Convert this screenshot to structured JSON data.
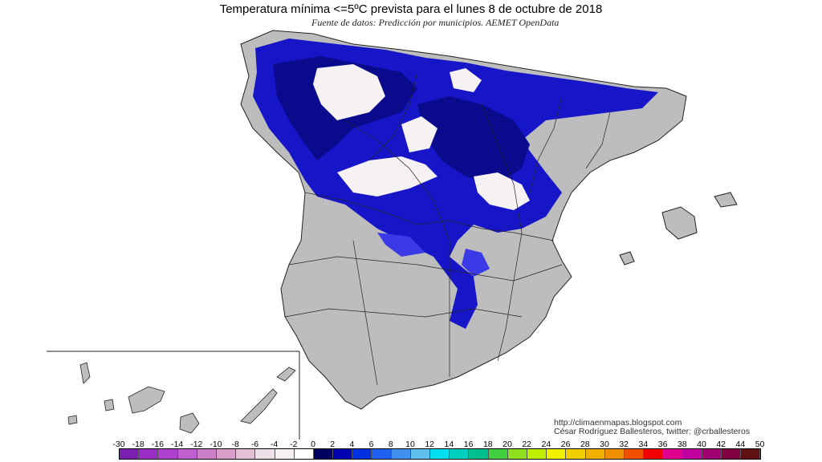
{
  "title": "Temperatura mínima <=5ºC prevista para el lunes 8 de octubre de 2018",
  "subtitle": "Fuente de datos: Predicción por municipios. AEMET OpenData",
  "credits": {
    "line1": "http://climaenmapas.blogspot.com",
    "line2": "César Rodríguez Ballesteros, twitter: @crballesteros"
  },
  "colors": {
    "land": "#bdbdbd",
    "land_dark": "#a9a9a9",
    "cold_dark": "#0a0a8c",
    "cold_mid": "#1616c8",
    "cold_light": "#3a3ae6",
    "snow": "#f6f2f4",
    "border": "#222222"
  },
  "legend": {
    "labels": [
      "-30",
      "-18",
      "-16",
      "-14",
      "-12",
      "-10",
      "-8",
      "-6",
      "-4",
      "-2",
      "0",
      "2",
      "4",
      "6",
      "8",
      "10",
      "12",
      "14",
      "16",
      "18",
      "20",
      "22",
      "24",
      "26",
      "28",
      "30",
      "32",
      "34",
      "36",
      "38",
      "40",
      "42",
      "44",
      "50"
    ],
    "colors": [
      "#7a1fb0",
      "#9a2fc8",
      "#b040d0",
      "#c060d0",
      "#cc80c8",
      "#d8a0c8",
      "#e4c0d4",
      "#eee0e8",
      "#f6f0f4",
      "#ffffff",
      "#000060",
      "#0000b0",
      "#0030e0",
      "#2060f0",
      "#4090f0",
      "#60c0f0",
      "#00e0f0",
      "#00d0c0",
      "#00c090",
      "#40d040",
      "#90e020",
      "#c0f000",
      "#f0f000",
      "#f0d000",
      "#f0b000",
      "#f09000",
      "#f05000",
      "#f00000",
      "#e00090",
      "#c000a0",
      "#a00070",
      "#800040",
      "#601010"
    ]
  }
}
